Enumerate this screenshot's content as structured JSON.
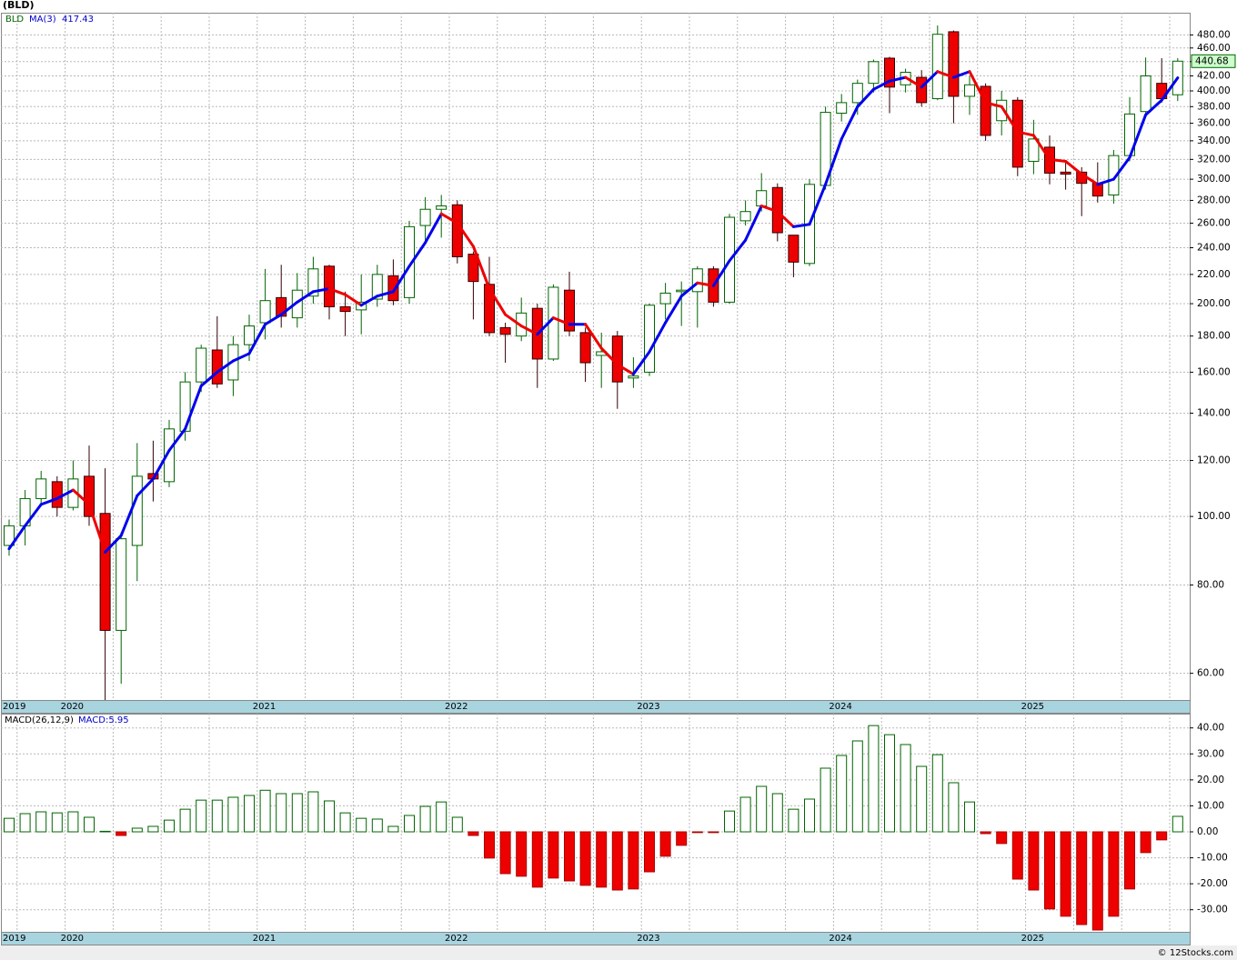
{
  "chart_data": [
    {
      "type": "candlestick",
      "title": "(BLD)",
      "categories": [
        "2019",
        null,
        null,
        null,
        "2020",
        null,
        null,
        null,
        null,
        null,
        null,
        null,
        null,
        null,
        null,
        null,
        "2021",
        null,
        null,
        null,
        null,
        null,
        null,
        null,
        null,
        null,
        null,
        null,
        "2022",
        null,
        null,
        null,
        null,
        null,
        null,
        null,
        null,
        null,
        null,
        null,
        "2023",
        null,
        null,
        null,
        null,
        null,
        null,
        null,
        null,
        null,
        null,
        null,
        "2024",
        null,
        null,
        null,
        null,
        null,
        null,
        null,
        null,
        null,
        null,
        null,
        "2025",
        null,
        null,
        null,
        null,
        null,
        null,
        null,
        null,
        null
      ],
      "series": [
        {
          "name": "BLD",
          "color": "#006400",
          "up_color": "#ffffff",
          "down_color": "#ee0000",
          "open": [
            91,
            97,
            106,
            112,
            103,
            114,
            101,
            69,
            91,
            115,
            112,
            132,
            155,
            172,
            156,
            175,
            188,
            204,
            191,
            205,
            226,
            198,
            196,
            203,
            219,
            204,
            258,
            272,
            276,
            235,
            213,
            185,
            180,
            197,
            167,
            209,
            182,
            169,
            180,
            157,
            160,
            200,
            208,
            208,
            224,
            201,
            262,
            275,
            292,
            250,
            228,
            294,
            372,
            385,
            410,
            445,
            408,
            418,
            390,
            485,
            393,
            406,
            363,
            388,
            318,
            333,
            307,
            307,
            296,
            285,
            324,
            374,
            410,
            395
          ],
          "high": [
            99,
            109,
            116,
            114,
            120,
            126,
            117,
            95,
            127,
            128,
            137,
            160,
            175,
            192,
            180,
            193,
            224,
            227,
            221,
            233,
            227,
            208,
            220,
            227,
            231,
            262,
            283,
            285,
            280,
            237,
            233,
            188,
            204,
            200,
            213,
            222,
            185,
            182,
            183,
            168,
            200,
            214,
            215,
            226,
            226,
            268,
            280,
            306,
            296,
            250,
            300,
            380,
            396,
            415,
            443,
            447,
            430,
            428,
            495,
            487,
            420,
            410,
            400,
            392,
            364,
            346,
            317,
            312,
            317,
            330,
            392,
            446,
            445,
            445
          ],
          "low": [
            88,
            91,
            104,
            100,
            102,
            97,
            55,
            58,
            81,
            105,
            110,
            128,
            150,
            152,
            148,
            166,
            178,
            185,
            185,
            200,
            190,
            180,
            181,
            198,
            199,
            200,
            245,
            248,
            228,
            190,
            180,
            165,
            177,
            152,
            166,
            180,
            155,
            152,
            142,
            152,
            158,
            190,
            186,
            185,
            198,
            200,
            258,
            270,
            245,
            218,
            226,
            290,
            362,
            370,
            398,
            372,
            398,
            380,
            388,
            360,
            370,
            340,
            346,
            303,
            305,
            295,
            290,
            266,
            278,
            277,
            318,
            368,
            385,
            387
          ],
          "close": [
            97,
            106,
            113,
            103,
            113,
            100,
            69,
            93,
            114,
            113,
            133,
            155,
            173,
            154,
            175,
            186,
            202,
            192,
            209,
            224,
            198,
            195,
            201,
            220,
            202,
            257,
            272,
            275,
            233,
            215,
            182,
            181,
            194,
            167,
            211,
            183,
            165,
            171,
            155,
            158,
            199,
            207,
            209,
            224,
            201,
            265,
            270,
            289,
            252,
            229,
            295,
            373,
            385,
            410,
            440,
            405,
            425,
            385,
            481,
            393,
            408,
            346,
            388,
            312,
            342,
            306,
            305,
            296,
            284,
            324,
            371,
            420,
            390,
            440.68
          ]
        },
        {
          "name": "MA(3)",
          "up_color": "#0000ee",
          "down_color": "#ee0000",
          "values": [
            90,
            97,
            104,
            106,
            109,
            104,
            89,
            94,
            107,
            113,
            124,
            133,
            153,
            160,
            166,
            170,
            187,
            193,
            201,
            208,
            210,
            206,
            199,
            205,
            208,
            226,
            244,
            268,
            260,
            241,
            210,
            193,
            186,
            181,
            191,
            187,
            187,
            173,
            164,
            159,
            171,
            188,
            205,
            214,
            212,
            230,
            246,
            275,
            270,
            257,
            259,
            295,
            342,
            380,
            402,
            413,
            418,
            405,
            426,
            418,
            426,
            385,
            380,
            350,
            346,
            320,
            318,
            305,
            295,
            300,
            322,
            370,
            388,
            417.43
          ]
        }
      ],
      "ylim": [
        55,
        516
      ],
      "log_scale": true,
      "grid": true,
      "yticks": [
        {
          "value": 60,
          "label": "60.00"
        },
        {
          "value": 80,
          "label": "80.00"
        },
        {
          "value": 100,
          "label": "100.00"
        },
        {
          "value": 120,
          "label": "120.00"
        },
        {
          "value": 140,
          "label": "140.00"
        },
        {
          "value": 160,
          "label": "160.00"
        },
        {
          "value": 180,
          "label": "180.00"
        },
        {
          "value": 200,
          "label": "200.00"
        },
        {
          "value": 220,
          "label": "220.00"
        },
        {
          "value": 240,
          "label": "240.00"
        },
        {
          "value": 260,
          "label": "260.00"
        },
        {
          "value": 280,
          "label": "280.00"
        },
        {
          "value": 300,
          "label": "300.00"
        },
        {
          "value": 320,
          "label": "320.00"
        },
        {
          "value": 340,
          "label": "340.00"
        },
        {
          "value": 360,
          "label": "360.00"
        },
        {
          "value": 380,
          "label": "380.00"
        },
        {
          "value": 400,
          "label": "400.00"
        },
        {
          "value": 420,
          "label": "420.00"
        },
        {
          "value": 440,
          "label": "440.00"
        },
        {
          "value": 460,
          "label": "460.00"
        },
        {
          "value": 480,
          "label": "480.00"
        }
      ]
    },
    {
      "type": "bar",
      "title": "MACD(26,12,9)",
      "legend_label": "MACD:5.95",
      "categories": [
        "2019",
        null,
        null,
        null,
        "2020",
        null,
        null,
        null,
        null,
        null,
        null,
        null,
        null,
        null,
        null,
        null,
        "2021",
        null,
        null,
        null,
        null,
        null,
        null,
        null,
        null,
        null,
        null,
        null,
        "2022",
        null,
        null,
        null,
        null,
        null,
        null,
        null,
        null,
        null,
        null,
        null,
        "2023",
        null,
        null,
        null,
        null,
        null,
        null,
        null,
        null,
        null,
        null,
        null,
        "2024",
        null,
        null,
        null,
        null,
        null,
        null,
        null,
        null,
        null,
        null,
        null,
        "2025",
        null,
        null,
        null,
        null,
        null,
        null,
        null,
        null,
        null
      ],
      "series": [
        {
          "name": "MACD",
          "color": "#006400",
          "up_color": "#ffffff",
          "down_color": "#ee0000",
          "values": [
            5.2,
            7,
            7.7,
            7.3,
            7.7,
            5.6,
            0.2,
            -1.4,
            1.4,
            2.1,
            4.5,
            8.7,
            12.2,
            12.2,
            13.3,
            14,
            16,
            14.7,
            14.7,
            15.4,
            11.9,
            7.3,
            5.2,
            4.9,
            2.1,
            6.3,
            9.8,
            11.5,
            5.6,
            -1.4,
            -10.1,
            -16.1,
            -17.1,
            -21.3,
            -17.8,
            -18.9,
            -20.6,
            -21.3,
            -22.4,
            -22,
            -15.4,
            -9.4,
            -5.2,
            -0.3,
            -0.3,
            8,
            13.3,
            17.5,
            14.7,
            8.7,
            12.6,
            24.5,
            29.4,
            35,
            40.9,
            37.4,
            33.6,
            25.2,
            29.7,
            18.9,
            11.5,
            -0.7,
            -4.5,
            -18.2,
            -22.4,
            -29.7,
            -32.5,
            -35.7,
            -37.8,
            -32.5,
            -22,
            -8,
            -3.1,
            5.95
          ]
        }
      ],
      "ylim": [
        -38.5,
        45.5
      ],
      "grid": true,
      "yticks": [
        {
          "value": -30,
          "label": "-30.00"
        },
        {
          "value": -20,
          "label": "-20.00"
        },
        {
          "value": -10,
          "label": "-10.00"
        },
        {
          "value": 0,
          "label": "0.00"
        },
        {
          "value": 10,
          "label": "10.00"
        },
        {
          "value": 20,
          "label": "20.00"
        },
        {
          "value": 30,
          "label": "30.00"
        },
        {
          "value": 40,
          "label": "40.00"
        }
      ]
    }
  ],
  "credit": "© 12Stocks.com"
}
